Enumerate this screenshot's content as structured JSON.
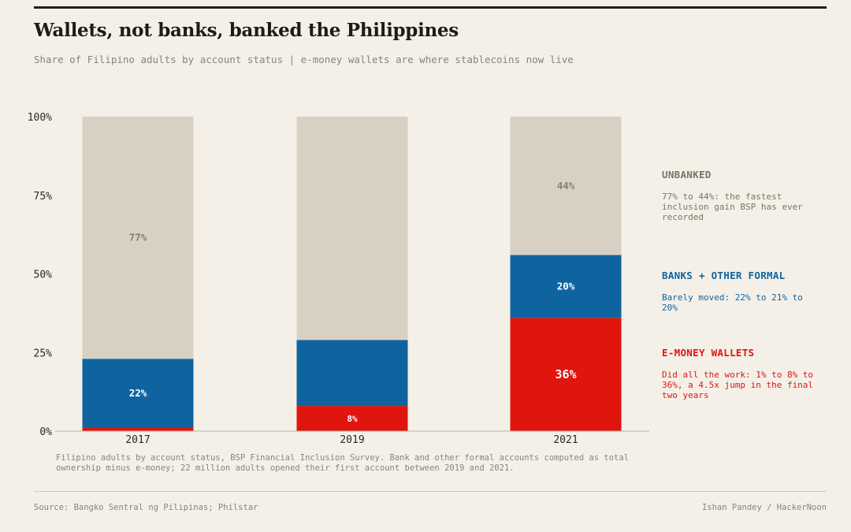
{
  "header": {
    "title": "Wallets, not banks, banked the Philippines",
    "subtitle": "Share of Filipino adults by account status | e-money wallets are where stablecoins now live"
  },
  "legend": [
    {
      "heading": "UNBANKED",
      "desc": "77% to 44%: the fastest inclusion gain BSP has ever recorded",
      "color": "#7a7466"
    },
    {
      "heading": "BANKS + OTHER FORMAL",
      "desc": "Barely moved: 22% to 21% to 20%",
      "color": "#0f64a0"
    },
    {
      "heading": "E-MONEY WALLETS",
      "desc": "Did all the work: 1% to 8% to 36%, a 4.5x jump in the final two years",
      "color": "#e0150e"
    }
  ],
  "note": "Filipino adults by account status, BSP Financial Inclusion Survey. Bank and other formal accounts computed as total ownership minus e-money; 22 million adults opened their first account between 2019 and 2021.",
  "footer": {
    "source": "Source: Bangko Sentral ng Pilipinas; Philstar",
    "credit": "Ishan Pandey / HackerNoon"
  },
  "chart_data": {
    "type": "bar",
    "stacked": true,
    "categories": [
      "2017",
      "2019",
      "2021"
    ],
    "series": [
      {
        "name": "E-MONEY WALLETS",
        "values": [
          1,
          8,
          36
        ],
        "labels": [
          "",
          "8%",
          "36%"
        ],
        "color": "#e0150e"
      },
      {
        "name": "BANKS + OTHER FORMAL",
        "values": [
          22,
          21,
          20
        ],
        "labels": [
          "22%",
          "",
          "20%"
        ],
        "color": "#0f64a0"
      },
      {
        "name": "UNBANKED",
        "values": [
          77,
          71,
          44
        ],
        "labels": [
          "77%",
          "",
          "44%"
        ],
        "color": "#d8d1c3"
      }
    ],
    "ylim": [
      0,
      100
    ],
    "yticks": [
      0,
      25,
      50,
      75,
      100
    ],
    "ytick_labels": [
      "0%",
      "25%",
      "50%",
      "75%",
      "100%"
    ],
    "grid": false
  }
}
